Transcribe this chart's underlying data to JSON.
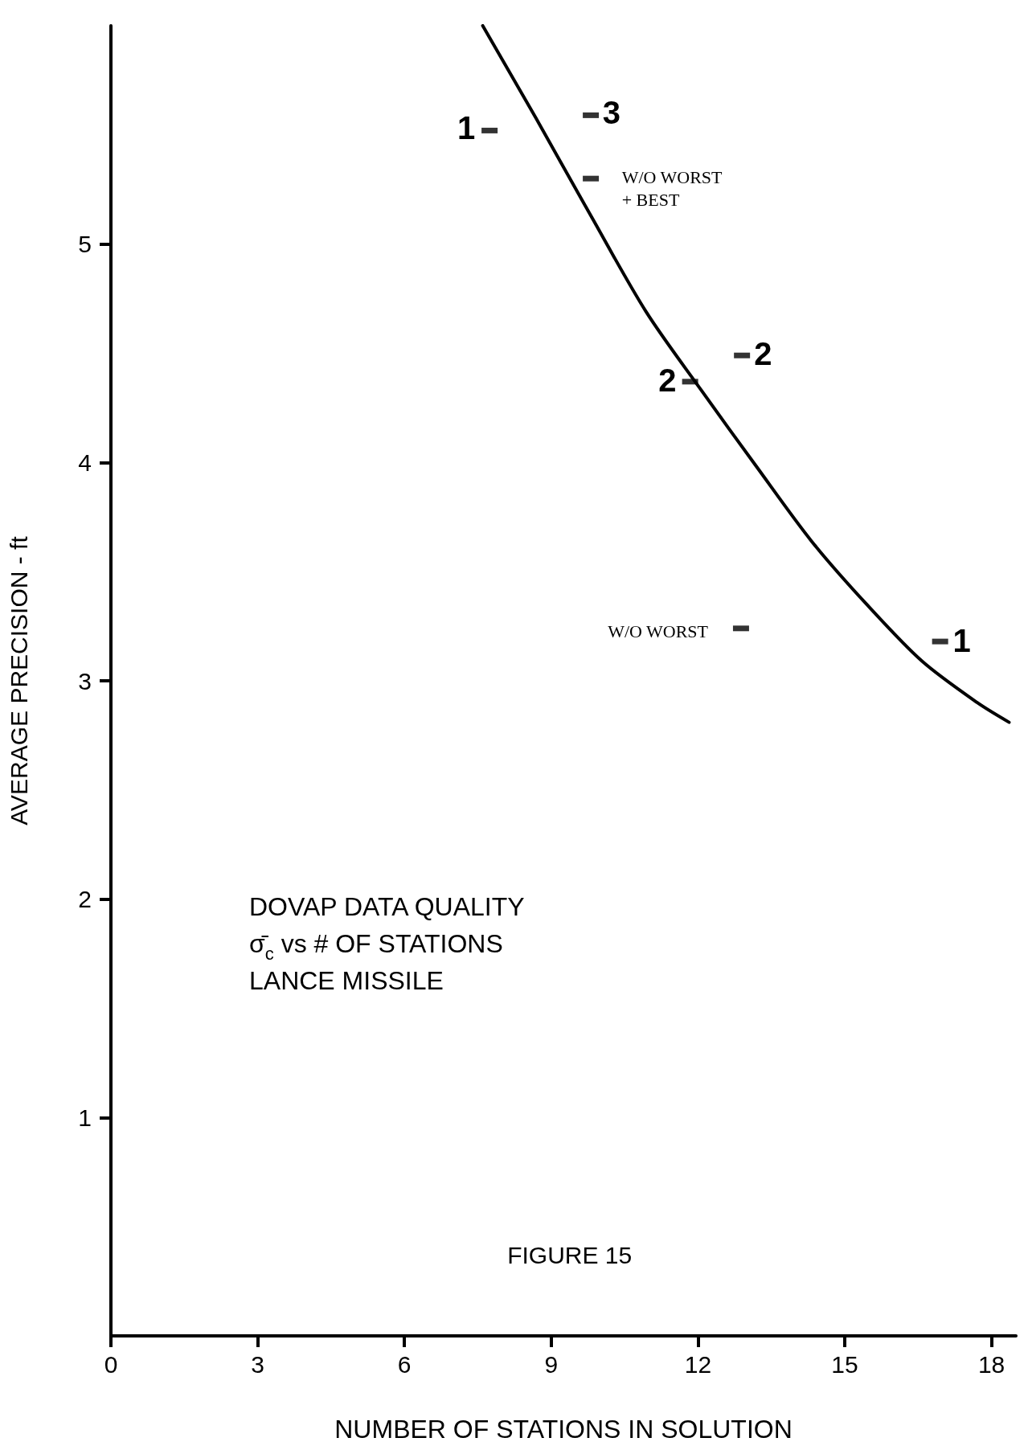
{
  "chart_data": {
    "type": "line",
    "title": "DOVAP DATA QUALITY\nσ̄$_{c}$ vs # OF STATIONS\nLANCE MISSILE",
    "xlabel": "NUMBER OF STATIONS IN SOLUTION",
    "ylabel": "AVERAGE PRECISION - ft",
    "xlim": [
      0,
      18.5
    ],
    "ylim": [
      0,
      6
    ],
    "xticks": [
      0,
      3,
      6,
      9,
      12,
      15,
      18
    ],
    "yticks": [
      1,
      2,
      3,
      4,
      5
    ],
    "grid": false,
    "series": [
      {
        "color": "#000000",
        "marker": "none",
        "x": [
          7.6,
          8.68,
          9.81,
          10.94,
          12.07,
          13.2,
          14.32,
          15.45,
          16.58,
          17.71,
          18.36
        ],
        "values": [
          6.0,
          5.58,
          5.13,
          4.69,
          4.33,
          3.98,
          3.64,
          3.35,
          3.09,
          2.9,
          2.81
        ]
      },
      {
        "type": "scatter",
        "color": "#000000",
        "x": [
          7.74,
          9.81,
          9.81,
          11.84,
          12.9,
          12.88,
          16.95
        ],
        "values": [
          5.52,
          5.59,
          5.3,
          4.37,
          4.49,
          3.24,
          3.18
        ]
      }
    ],
    "annotations": [
      {
        "text": "1",
        "x": 7.74,
        "y": 5.52
      },
      {
        "text": "3",
        "x": 9.81,
        "y": 5.59
      },
      {
        "text": "W/O WORST\n+ BEST",
        "x": 9.81,
        "y": 5.3
      },
      {
        "text": "2",
        "x": 11.84,
        "y": 4.37
      },
      {
        "text": "2",
        "x": 12.9,
        "y": 4.49
      },
      {
        "text": "W/O WORST",
        "x": 12.88,
        "y": 3.24
      },
      {
        "text": "1",
        "x": 16.95,
        "y": 3.18
      },
      "FIGURE 15"
    ]
  }
}
